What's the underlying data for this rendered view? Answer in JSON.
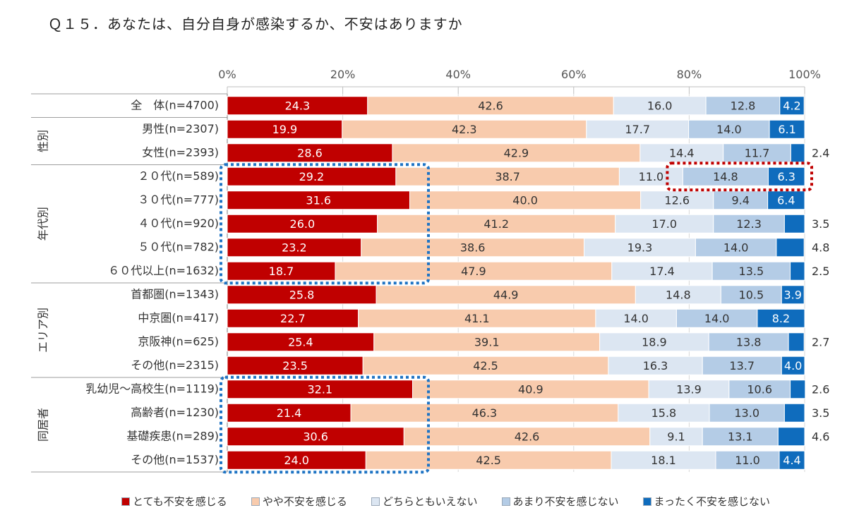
{
  "title": "Ｑ１５．あなたは、自分自身が感染するか、不安はありますか",
  "chart_data": {
    "type": "bar",
    "orientation": "horizontal",
    "stacked": true,
    "percent_stacked": true,
    "title": "Ｑ１５．あなたは、自分自身が感染するか、不安はありますか",
    "xlim": [
      0,
      100
    ],
    "x_tick_labels": [
      "0%",
      "20%",
      "40%",
      "60%",
      "80%",
      "100%"
    ],
    "grid": true,
    "legend_position": "bottom",
    "series": [
      {
        "name": "とても不安を感じる",
        "color": "#c00000"
      },
      {
        "name": "やや不安を感じる",
        "color": "#f8cbad"
      },
      {
        "name": "どちらともいえない",
        "color": "#dce6f2"
      },
      {
        "name": "あまり不安を感じない",
        "color": "#b4cce6"
      },
      {
        "name": "まったく不安を感じない",
        "color": "#0f6cbd"
      }
    ],
    "groups": [
      {
        "label": "",
        "rows": [
          0
        ]
      },
      {
        "label": "性別",
        "rows": [
          1,
          2
        ]
      },
      {
        "label": "年代別",
        "rows": [
          3,
          4,
          5,
          6,
          7
        ]
      },
      {
        "label": "エリア別",
        "rows": [
          8,
          9,
          10,
          11
        ]
      },
      {
        "label": "同居者",
        "rows": [
          12,
          13,
          14,
          15
        ]
      }
    ],
    "rows": [
      {
        "label": "全　体(n=4700)",
        "values": [
          24.3,
          42.6,
          16.0,
          12.8,
          4.2
        ],
        "outside": ""
      },
      {
        "label": "男性(n=2307)",
        "values": [
          19.9,
          42.3,
          17.7,
          14.0,
          6.1
        ],
        "outside": ""
      },
      {
        "label": "女性(n=2393)",
        "values": [
          28.6,
          42.9,
          14.4,
          11.7,
          2.4
        ],
        "outside": "2.4"
      },
      {
        "label": "２０代(n=589)",
        "values": [
          29.2,
          38.7,
          11.0,
          14.8,
          6.3
        ],
        "outside": ""
      },
      {
        "label": "３０代(n=777)",
        "values": [
          31.6,
          40.0,
          12.6,
          9.4,
          6.4
        ],
        "outside": ""
      },
      {
        "label": "４０代(n=920)",
        "values": [
          26.0,
          41.2,
          17.0,
          12.3,
          3.5
        ],
        "outside": "3.5"
      },
      {
        "label": "５０代(n=782)",
        "values": [
          23.2,
          38.6,
          19.3,
          14.0,
          4.8
        ],
        "outside": "4.8"
      },
      {
        "label": "６０代以上(n=1632)",
        "values": [
          18.7,
          47.9,
          17.4,
          13.5,
          2.5
        ],
        "outside": "2.5"
      },
      {
        "label": "首都圏(n=1343)",
        "values": [
          25.8,
          44.9,
          14.8,
          10.5,
          3.9
        ],
        "outside": ""
      },
      {
        "label": "中京圏(n=417)",
        "values": [
          22.7,
          41.1,
          14.0,
          14.0,
          8.2
        ],
        "outside": ""
      },
      {
        "label": "京阪神(n=625)",
        "values": [
          25.4,
          39.1,
          18.9,
          13.8,
          2.7
        ],
        "outside": "2.7"
      },
      {
        "label": "その他(n=2315)",
        "values": [
          23.5,
          42.5,
          16.3,
          13.7,
          4.0
        ],
        "outside": ""
      },
      {
        "label": "乳幼児～高校生(n=1119)",
        "values": [
          32.1,
          40.9,
          13.9,
          10.6,
          2.6
        ],
        "outside": "2.6"
      },
      {
        "label": "高齢者(n=1230)",
        "values": [
          21.4,
          46.3,
          15.8,
          13.0,
          3.5
        ],
        "outside": "3.5"
      },
      {
        "label": "基礎疾患(n=289)",
        "values": [
          30.6,
          42.6,
          9.1,
          13.1,
          4.6
        ],
        "outside": "4.6"
      },
      {
        "label": "その他(n=1537)",
        "values": [
          24.0,
          42.5,
          18.1,
          11.0,
          4.4
        ],
        "outside": ""
      }
    ]
  }
}
